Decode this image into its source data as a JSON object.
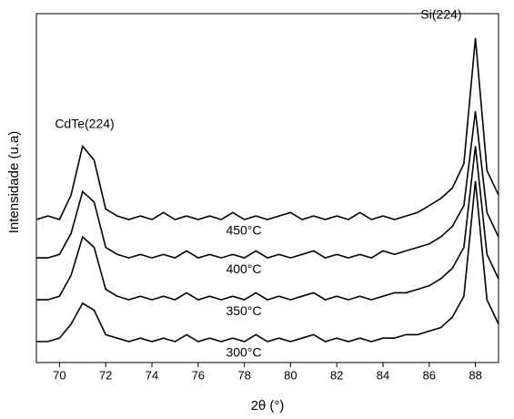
{
  "chart_data": {
    "type": "line",
    "x_label": "2θ (°)",
    "y_label": "Intensidade (u.a)",
    "x": [
      69,
      69.5,
      70,
      70.5,
      71,
      71.5,
      72,
      72.5,
      73,
      73.5,
      74,
      74.5,
      75,
      75.5,
      76,
      76.5,
      77,
      77.5,
      78,
      78.5,
      79,
      79.5,
      80,
      80.5,
      81,
      81.5,
      82,
      82.5,
      83,
      83.5,
      84,
      84.5,
      85,
      85.5,
      86,
      86.5,
      87,
      87.5,
      88,
      88.5,
      89
    ],
    "series": [
      {
        "name": "450°C",
        "color": "#000000",
        "values": [
          41,
          42,
          41,
          48,
          62,
          58,
          44,
          42,
          41,
          42,
          41,
          43,
          41,
          42,
          41,
          42,
          41,
          43,
          41,
          42,
          41,
          42,
          43,
          41,
          42,
          41,
          42,
          41,
          43,
          41,
          42,
          41,
          42,
          43,
          45,
          47,
          50,
          57,
          93,
          55,
          48
        ]
      },
      {
        "name": "400°C",
        "color": "#000000",
        "values": [
          30,
          30,
          31,
          37,
          49,
          46,
          33,
          31,
          30,
          31,
          30,
          31,
          30,
          32,
          30,
          31,
          30,
          31,
          30,
          32,
          30,
          31,
          30,
          31,
          32,
          30,
          31,
          30,
          31,
          30,
          32,
          31,
          32,
          33,
          34,
          36,
          39,
          45,
          72,
          43,
          36
        ]
      },
      {
        "name": "350°C",
        "color": "#000000",
        "values": [
          18,
          18,
          19,
          25,
          36,
          33,
          21,
          19,
          18,
          19,
          18,
          19,
          18,
          20,
          18,
          19,
          18,
          19,
          18,
          20,
          18,
          19,
          18,
          19,
          20,
          18,
          19,
          18,
          19,
          18,
          19,
          20,
          20,
          21,
          22,
          24,
          27,
          33,
          62,
          31,
          24
        ]
      },
      {
        "name": "300°C",
        "color": "#000000",
        "values": [
          6,
          6,
          7,
          11,
          17,
          15,
          8,
          7,
          6,
          7,
          6,
          7,
          6,
          8,
          6,
          7,
          6,
          7,
          6,
          8,
          6,
          7,
          6,
          7,
          8,
          6,
          7,
          6,
          7,
          6,
          7,
          7,
          8,
          8,
          9,
          10,
          13,
          19,
          52,
          18,
          11
        ]
      }
    ],
    "annotations": [
      {
        "text": "CdTe(224)"
      },
      {
        "text": "Si(224)"
      }
    ],
    "xlim": [
      69,
      89
    ],
    "xticks": [
      70,
      72,
      74,
      76,
      78,
      80,
      82,
      84,
      86,
      88
    ],
    "ylim": [
      0,
      100
    ],
    "grid": false
  }
}
